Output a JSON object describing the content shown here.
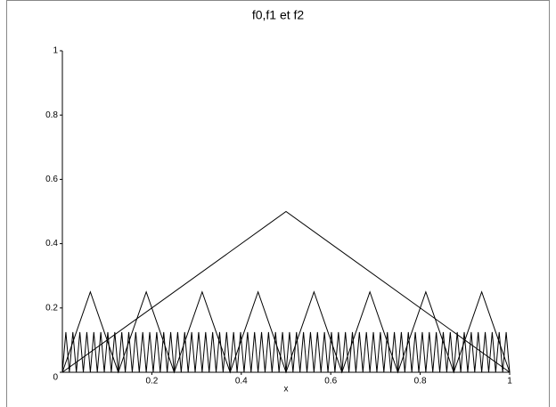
{
  "chart_data": {
    "type": "line",
    "title": "f0,f1 et f2",
    "x_label": "x",
    "xlim": [
      0,
      1
    ],
    "ylim": [
      0,
      1
    ],
    "xticks": [
      0.2,
      0.4,
      0.6,
      0.8,
      1
    ],
    "yticks": [
      0,
      0.2,
      0.4,
      0.6,
      0.8,
      1
    ],
    "series": [
      {
        "color": "#000000",
        "x": [
          0,
          0.5,
          1
        ],
        "values": [
          0,
          0.5,
          0
        ]
      },
      {
        "color": "#000000",
        "x": [
          0,
          0.0625,
          0.125,
          0.1875,
          0.25,
          0.3125,
          0.375,
          0.4375,
          0.5,
          0.5625,
          0.625,
          0.6875,
          0.75,
          0.8125,
          0.875,
          0.9375,
          1
        ],
        "values": [
          0,
          0.25,
          0,
          0.25,
          0,
          0.25,
          0,
          0.25,
          0,
          0.25,
          0,
          0.25,
          0,
          0.25,
          0,
          0.25,
          0
        ]
      },
      {
        "color": "#000000",
        "x": [
          0,
          0.0078125,
          0.015625,
          0.0234375,
          0.03125,
          0.0390625,
          0.046875,
          0.0546875,
          0.0625,
          0.0703125,
          0.078125,
          0.0859375,
          0.09375,
          0.1015625,
          0.109375,
          0.1171875,
          0.125,
          0.1328125,
          0.140625,
          0.1484375,
          0.15625,
          0.1640625,
          0.171875,
          0.1796875,
          0.1875,
          0.1953125,
          0.203125,
          0.2109375,
          0.21875,
          0.2265625,
          0.234375,
          0.2421875,
          0.25,
          0.2578125,
          0.265625,
          0.2734375,
          0.28125,
          0.2890625,
          0.296875,
          0.3046875,
          0.3125,
          0.3203125,
          0.328125,
          0.3359375,
          0.34375,
          0.3515625,
          0.359375,
          0.3671875,
          0.375,
          0.3828125,
          0.390625,
          0.3984375,
          0.40625,
          0.4140625,
          0.421875,
          0.4296875,
          0.4375,
          0.4453125,
          0.453125,
          0.4609375,
          0.46875,
          0.4765625,
          0.484375,
          0.4921875,
          0.5,
          0.5078125,
          0.515625,
          0.5234375,
          0.53125,
          0.5390625,
          0.546875,
          0.5546875,
          0.5625,
          0.5703125,
          0.578125,
          0.5859375,
          0.59375,
          0.6015625,
          0.609375,
          0.6171875,
          0.625,
          0.6328125,
          0.640625,
          0.6484375,
          0.65625,
          0.6640625,
          0.671875,
          0.6796875,
          0.6875,
          0.6953125,
          0.703125,
          0.7109375,
          0.71875,
          0.7265625,
          0.734375,
          0.7421875,
          0.75,
          0.7578125,
          0.765625,
          0.7734375,
          0.78125,
          0.7890625,
          0.796875,
          0.8046875,
          0.8125,
          0.8203125,
          0.828125,
          0.8359375,
          0.84375,
          0.8515625,
          0.859375,
          0.8671875,
          0.875,
          0.8828125,
          0.890625,
          0.8984375,
          0.90625,
          0.9140625,
          0.921875,
          0.9296875,
          0.9375,
          0.9453125,
          0.953125,
          0.9609375,
          0.96875,
          0.9765625,
          0.984375,
          0.9921875,
          1
        ],
        "values": [
          0,
          0.125,
          0,
          0.125,
          0,
          0.125,
          0,
          0.125,
          0,
          0.125,
          0,
          0.125,
          0,
          0.125,
          0,
          0.125,
          0,
          0.125,
          0,
          0.125,
          0,
          0.125,
          0,
          0.125,
          0,
          0.125,
          0,
          0.125,
          0,
          0.125,
          0,
          0.125,
          0,
          0.125,
          0,
          0.125,
          0,
          0.125,
          0,
          0.125,
          0,
          0.125,
          0,
          0.125,
          0,
          0.125,
          0,
          0.125,
          0,
          0.125,
          0,
          0.125,
          0,
          0.125,
          0,
          0.125,
          0,
          0.125,
          0,
          0.125,
          0,
          0.125,
          0,
          0.125,
          0,
          0.125,
          0,
          0.125,
          0,
          0.125,
          0,
          0.125,
          0,
          0.125,
          0,
          0.125,
          0,
          0.125,
          0,
          0.125,
          0,
          0.125,
          0,
          0.125,
          0,
          0.125,
          0,
          0.125,
          0,
          0.125,
          0,
          0.125,
          0,
          0.125,
          0,
          0.125,
          0,
          0.125,
          0,
          0.125,
          0,
          0.125,
          0,
          0.125,
          0,
          0.125,
          0,
          0.125,
          0,
          0.125,
          0,
          0.125,
          0,
          0.125,
          0,
          0.125,
          0,
          0.125,
          0,
          0.125,
          0,
          0.125,
          0,
          0.125,
          0,
          0.125,
          0,
          0.125,
          0
        ]
      }
    ]
  }
}
